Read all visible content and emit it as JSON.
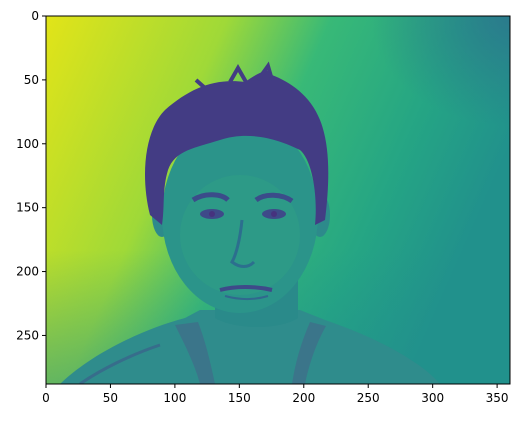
{
  "image": {
    "description_type": "viridis-colormapped grayscale portrait",
    "colormap": "viridis",
    "colors": {
      "bright": "#e2e418",
      "mid": "#25a584",
      "teal": "#21918c",
      "dark": "#3e4a89",
      "deep": "#46327e",
      "axis": "#000000"
    }
  },
  "axes": {
    "x_ticks": [
      "0",
      "50",
      "100",
      "150",
      "200",
      "250",
      "300",
      "350"
    ],
    "y_ticks": [
      "0",
      "50",
      "100",
      "150",
      "200",
      "250"
    ],
    "xlim": [
      0,
      360
    ],
    "ylim": [
      0,
      288
    ]
  }
}
